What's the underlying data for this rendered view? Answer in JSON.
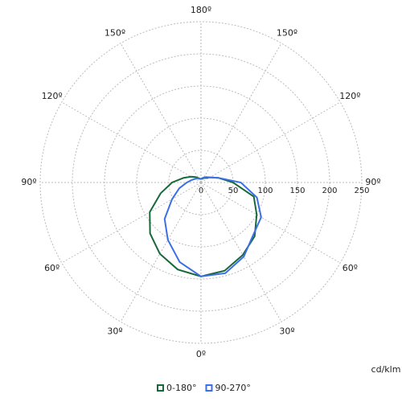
{
  "chart_data": {
    "type": "polar",
    "x": [
      -180,
      -165,
      -150,
      -135,
      -120,
      -105,
      -90,
      -75,
      -60,
      -45,
      -30,
      -15,
      0,
      15,
      30,
      45,
      60,
      75,
      90,
      105,
      120,
      135,
      150,
      165,
      180
    ],
    "series": [
      {
        "name": "0-180°",
        "color": "#17693a",
        "values": [
          6,
          6,
          8,
          12,
          18,
          28,
          45,
          65,
          92,
          112,
          128,
          140,
          146,
          142,
          130,
          118,
          100,
          85,
          50,
          28,
          16,
          10,
          8,
          6,
          6
        ]
      },
      {
        "name": "90-270°",
        "color": "#3b6fe6",
        "values": [
          5,
          6,
          7,
          9,
          11,
          15,
          22,
          35,
          52,
          80,
          103,
          128,
          146,
          146,
          133,
          115,
          108,
          90,
          62,
          28,
          16,
          12,
          9,
          7,
          5
        ]
      }
    ],
    "rlim": [
      0,
      250
    ],
    "rticks": [
      0,
      50,
      100,
      150,
      200,
      250
    ],
    "angle_ticks": [
      {
        "value": -150,
        "label": "150º"
      },
      {
        "value": -120,
        "label": "120º"
      },
      {
        "value": -90,
        "label": "90º"
      },
      {
        "value": -60,
        "label": "60º"
      },
      {
        "value": -30,
        "label": "30º"
      },
      {
        "value": 0,
        "label": "0º"
      },
      {
        "value": 30,
        "label": "30º"
      },
      {
        "value": 60,
        "label": "60º"
      },
      {
        "value": 90,
        "label": "90º"
      },
      {
        "value": 120,
        "label": "120º"
      },
      {
        "value": 150,
        "label": "150º"
      },
      {
        "value": 180,
        "label": "180º"
      }
    ],
    "unit_label": "cd/klm",
    "grid": true
  }
}
